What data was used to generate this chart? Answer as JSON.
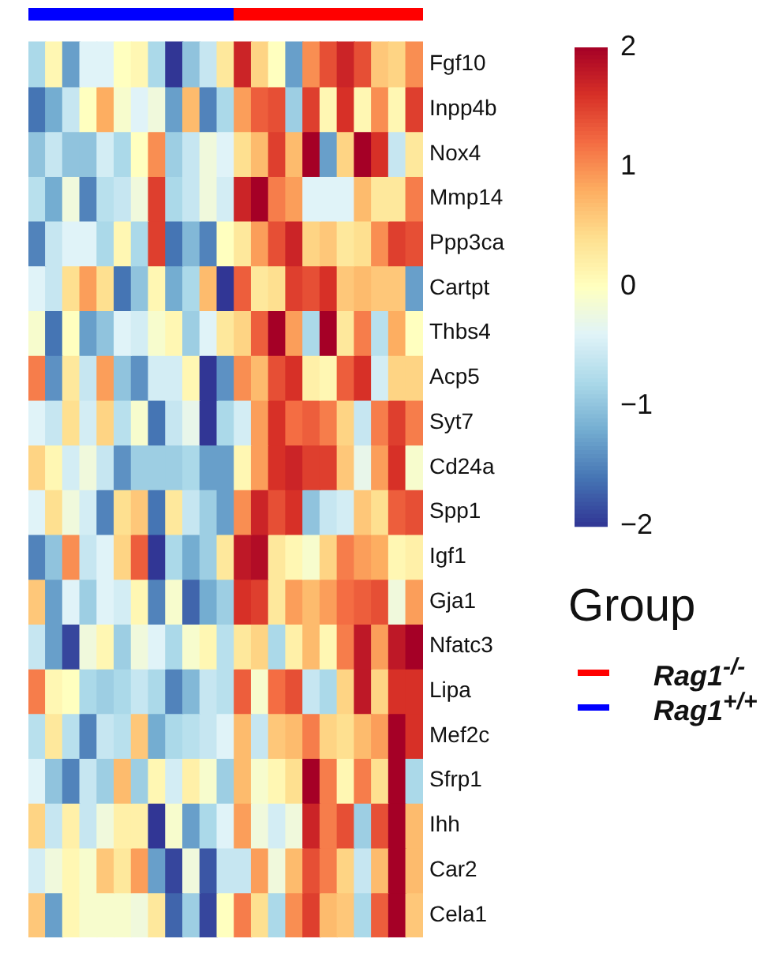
{
  "chart_data": {
    "type": "heatmap",
    "categories": [
      null,
      null,
      null,
      null,
      null,
      null,
      null,
      null,
      null,
      null,
      null,
      null,
      null,
      null,
      null,
      null,
      null,
      null,
      null,
      null,
      null,
      null,
      null
    ],
    "y_categories": [
      "Fgf10",
      "Inpp4b",
      "Nox4",
      "Mmp14",
      "Ppp3ca",
      "Cartpt",
      "Thbs4",
      "Acp5",
      "Syt7",
      "Cd24a",
      "Spp1",
      "Igf1",
      "Gja1",
      "Nfatc3",
      "Lipa",
      "Mef2c",
      "Sfrp1",
      "Ihh",
      "Car2",
      "Cela1"
    ],
    "cells": [
      [
        -0.8,
        0.1,
        -1.3,
        -0.4,
        -0.4,
        0,
        0.1,
        -0.8,
        -2,
        -1,
        -0.6,
        0.3,
        1.7,
        0.5,
        0,
        -1.3,
        1,
        1.4,
        1.7,
        1.4,
        0.6,
        0.5,
        1
      ],
      [
        -1.6,
        -1.2,
        -0.6,
        0,
        0.8,
        -0.1,
        -0.4,
        -0.2,
        -1.3,
        0.7,
        -1.5,
        -0.8,
        0.9,
        1.3,
        1.4,
        -0.9,
        1.5,
        0.1,
        1.6,
        0.1,
        1,
        0.1,
        1.5
      ],
      [
        -1,
        -0.6,
        -1,
        -1,
        -0.5,
        -0.8,
        0,
        1,
        -0.9,
        -0.6,
        -0.2,
        -0.4,
        0.4,
        0.7,
        1.5,
        0.7,
        2,
        -1.3,
        0.5,
        2,
        1.6,
        -0.6,
        0.3
      ],
      [
        -0.7,
        -1.2,
        -0.2,
        -1.5,
        -0.7,
        -0.6,
        -0.2,
        1.5,
        -0.8,
        -0.6,
        -0.2,
        -0.5,
        1.7,
        2,
        1.1,
        0.9,
        -0.4,
        -0.4,
        -0.4,
        0.7,
        0.3,
        0.3,
        1.1
      ],
      [
        -1.5,
        -0.6,
        -0.4,
        -0.4,
        -0.8,
        0.1,
        -0.8,
        1.5,
        -1.6,
        -1.1,
        -1.5,
        0,
        0.3,
        0.9,
        1.4,
        1.7,
        0.5,
        0.6,
        0.3,
        0.4,
        1,
        1.5,
        1.4
      ],
      [
        -0.4,
        -0.6,
        0.4,
        0.9,
        0.4,
        -1.6,
        -1,
        0.1,
        -1.2,
        -0.8,
        0.7,
        -2,
        1.3,
        0.3,
        0.4,
        1.5,
        1.4,
        1.6,
        0.6,
        0.7,
        0.6,
        0.6,
        -1.3
      ],
      [
        -0.1,
        -1.6,
        0,
        -1.3,
        -1,
        -0.4,
        -0.5,
        -0.1,
        0.1,
        -0.9,
        -0.4,
        0.3,
        0.5,
        1.3,
        2,
        0.9,
        -0.8,
        2,
        0.3,
        1.1,
        -0.7,
        0.8,
        0
      ],
      [
        1.1,
        -1.4,
        0.3,
        -0.6,
        0.9,
        -1,
        -1.4,
        -0.5,
        -0.5,
        0.1,
        -2,
        -1.4,
        1,
        0.7,
        1.4,
        1.6,
        0.2,
        0.1,
        1.3,
        1.6,
        -0.5,
        0.5,
        0.5
      ],
      [
        -0.4,
        -0.6,
        0.4,
        -0.5,
        0.5,
        -0.7,
        -0.1,
        -1.6,
        -0.6,
        -0.3,
        -2,
        -0.8,
        -0.5,
        0.9,
        1.6,
        1.2,
        1.3,
        1.1,
        0.5,
        -0.6,
        1.1,
        1.5,
        1.1
      ],
      [
        0.5,
        0.1,
        -0.5,
        -0.2,
        -0.6,
        -1.4,
        -0.9,
        -0.9,
        -0.9,
        -0.8,
        -1.3,
        -1.3,
        0.1,
        0.9,
        1.6,
        1.7,
        1.5,
        1.5,
        0.6,
        -0.3,
        0.9,
        1.6,
        -0.1
      ],
      [
        -0.4,
        0.4,
        -0.2,
        -0.5,
        -1.5,
        0.4,
        0.6,
        -1.6,
        0.3,
        -0.6,
        -0.9,
        -1.3,
        1,
        1.7,
        1.4,
        1.6,
        -1,
        -0.6,
        -0.5,
        0.6,
        0.4,
        1.3,
        1.4
      ],
      [
        -1.5,
        -1,
        1,
        -0.6,
        -0.4,
        0.5,
        1.3,
        -2,
        -0.8,
        -1.2,
        -0.9,
        0.3,
        1.8,
        1.9,
        0.3,
        0.1,
        -0.1,
        0.5,
        1.1,
        0.9,
        0.8,
        0.1,
        0.2
      ],
      [
        0.6,
        -1.3,
        -0.4,
        -0.9,
        -0.4,
        -0.5,
        0.1,
        -1.5,
        -0.1,
        -1.7,
        -1.2,
        -0.9,
        1.6,
        1.5,
        0.3,
        0.9,
        0.7,
        0.9,
        1.2,
        1.3,
        1.4,
        -0.2,
        0.9
      ],
      [
        -0.6,
        -1.3,
        -1.9,
        -0.2,
        0.1,
        -0.9,
        -0.2,
        -0.4,
        -0.8,
        -0.1,
        0.1,
        -0.7,
        0.3,
        0.5,
        -0.8,
        0.2,
        0.7,
        0.1,
        1.1,
        1.8,
        0.9,
        1.8,
        2
      ],
      [
        1.1,
        0.1,
        0,
        -0.8,
        -0.9,
        -0.8,
        -0.6,
        -0.8,
        -1.5,
        -1.1,
        -0.6,
        -0.7,
        1.3,
        -0.1,
        1.2,
        1.4,
        -0.6,
        -0.8,
        0.5,
        1.8,
        0.5,
        1.6,
        1.6
      ],
      [
        -0.7,
        0.3,
        -0.7,
        -1.5,
        -0.6,
        -0.7,
        0.6,
        -1.2,
        -0.8,
        -0.7,
        -0.6,
        -0.4,
        0.7,
        -0.6,
        0.6,
        0.7,
        1.1,
        0.5,
        0.4,
        0.7,
        0.9,
        2,
        1.6
      ],
      [
        -0.4,
        -1,
        -1.5,
        -0.6,
        -0.9,
        0.7,
        -0.9,
        0.1,
        -0.5,
        0.2,
        -0.1,
        -0.9,
        0.7,
        -0.1,
        0.1,
        0.4,
        2,
        1.1,
        0.1,
        1.1,
        0.4,
        2,
        -0.8
      ],
      [
        0.5,
        -0.6,
        0.2,
        -0.6,
        -0.2,
        0.2,
        0.2,
        -2,
        -0.1,
        -1.3,
        -0.8,
        -0.4,
        0.9,
        -0.2,
        -0.5,
        -0.2,
        1.7,
        1.1,
        1.4,
        -0.9,
        1.4,
        2,
        0.7
      ],
      [
        -0.5,
        -0.2,
        0.1,
        -0.1,
        0.6,
        0.3,
        0.9,
        -1.3,
        -1.9,
        -0.2,
        -1.8,
        -0.6,
        -0.6,
        0.9,
        -0.2,
        0.7,
        1.4,
        1.1,
        0.5,
        -0.6,
        0.7,
        2,
        0.7
      ],
      [
        0.6,
        -1.3,
        0.1,
        -0.1,
        -0.1,
        -0.1,
        -0.2,
        0.3,
        -1.7,
        -0.9,
        -1.9,
        0,
        1.1,
        0.4,
        -0.8,
        1,
        1.5,
        0.7,
        0.6,
        -0.8,
        1.3,
        2,
        0.6
      ]
    ],
    "clim": [
      -2,
      2
    ],
    "cticks": [
      {
        "value": -2,
        "label": "−2"
      },
      {
        "value": -1,
        "label": "−1"
      },
      0,
      1,
      2
    ],
    "legend_title": "Group",
    "annotations": [
      "Rag1$^{-/-}$",
      "Rag1$^{+/+}$"
    ]
  }
}
